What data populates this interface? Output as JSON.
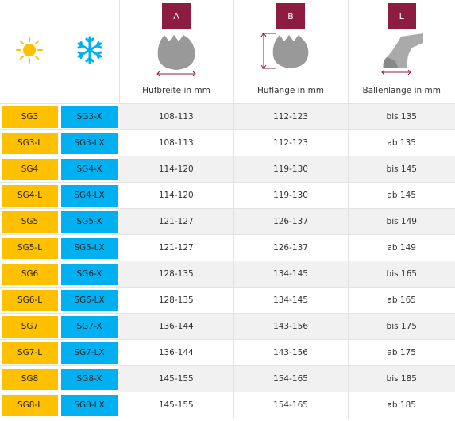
{
  "colors": {
    "warm": "#ffc000",
    "cold": "#00b0f0",
    "letter_box": "#8c1d40",
    "sun": "#ffc000",
    "snow": "#00b0f0",
    "hoof": "#999999"
  },
  "header": {
    "sun_icon": "sun-icon",
    "snow_icon": "snowflake-icon",
    "col_a": {
      "letter": "A",
      "label": "Hufbreite in mm"
    },
    "col_b": {
      "letter": "B",
      "label": "Huflänge in mm"
    },
    "col_l": {
      "letter": "L",
      "label": "Ballenlänge in mm"
    }
  },
  "rows": [
    {
      "warm": "SG3",
      "cold": "SG3-X",
      "a": "108-113",
      "b": "112-123",
      "l": "bis 135"
    },
    {
      "warm": "SG3-L",
      "cold": "SG3-LX",
      "a": "108-113",
      "b": "112-123",
      "l": "ab 135"
    },
    {
      "warm": "SG4",
      "cold": "SG4-X",
      "a": "114-120",
      "b": "119-130",
      "l": "bis 145"
    },
    {
      "warm": "SG4-L",
      "cold": "SG4-LX",
      "a": "114-120",
      "b": "119-130",
      "l": "ab 145"
    },
    {
      "warm": "SG5",
      "cold": "SG5-X",
      "a": "121-127",
      "b": "126-137",
      "l": "bis 149"
    },
    {
      "warm": "SG5-L",
      "cold": "SG5-LX",
      "a": "121-127",
      "b": "126-137",
      "l": "ab 149"
    },
    {
      "warm": "SG6",
      "cold": "SG6-X",
      "a": "128-135",
      "b": "134-145",
      "l": "bis 165"
    },
    {
      "warm": "SG6-L",
      "cold": "SG6-LX",
      "a": "128-135",
      "b": "134-145",
      "l": "ab 165"
    },
    {
      "warm": "SG7",
      "cold": "SG7-X",
      "a": "136-144",
      "b": "143-156",
      "l": "bis 175"
    },
    {
      "warm": "SG7-L",
      "cold": "SG7-LX",
      "a": "136-144",
      "b": "143-156",
      "l": "ab 175"
    },
    {
      "warm": "SG8",
      "cold": "SG8-X",
      "a": "145-155",
      "b": "154-165",
      "l": "bis 185"
    },
    {
      "warm": "SG8-L",
      "cold": "SG8-LX",
      "a": "145-155",
      "b": "154-165",
      "l": "ab 185"
    }
  ]
}
